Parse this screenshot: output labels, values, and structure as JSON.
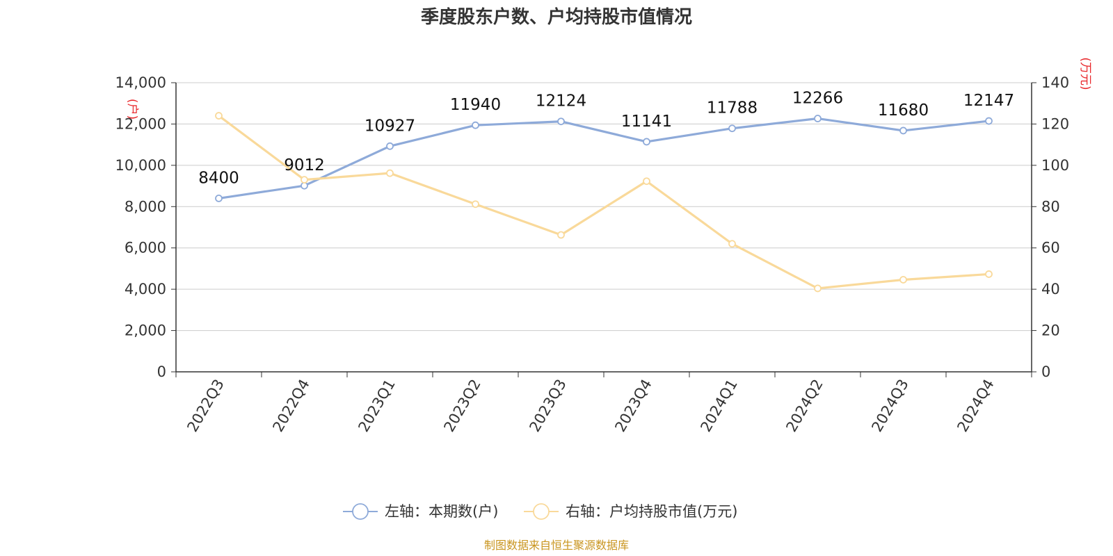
{
  "chart_data": {
    "type": "line",
    "title": "季度股东户数、户均持股市值情况",
    "categories": [
      "2022Q3",
      "2022Q4",
      "2023Q1",
      "2023Q2",
      "2023Q3",
      "2023Q4",
      "2024Q1",
      "2024Q2",
      "2024Q3",
      "2024Q4"
    ],
    "left_axis": {
      "unit": "(户)",
      "range": [
        0,
        14000
      ],
      "ticks": [
        "0",
        "2,000",
        "4,000",
        "6,000",
        "8,000",
        "10,000",
        "12,000",
        "14,000"
      ]
    },
    "right_axis": {
      "unit": "(万元)",
      "range": [
        0,
        140
      ],
      "ticks": [
        "0",
        "20",
        "40",
        "60",
        "80",
        "100",
        "120",
        "140"
      ]
    },
    "series": [
      {
        "name": "左轴：本期数(户)",
        "axis": "left",
        "color": "#8eaad9",
        "values": [
          8400,
          9012,
          10927,
          11940,
          12124,
          11141,
          11788,
          12266,
          11680,
          12147
        ],
        "labels": [
          "8400",
          "9012",
          "10927",
          "11940",
          "12124",
          "11141",
          "11788",
          "12266",
          "11680",
          "12147"
        ]
      },
      {
        "name": "右轴：户均持股市值(万元)",
        "axis": "right",
        "color": "#f9d99a",
        "values": [
          124.0,
          93.0,
          96.2,
          81.2,
          66.3,
          92.3,
          62.0,
          40.4,
          44.6,
          47.3
        ]
      }
    ],
    "grid": true,
    "legend_position": "bottom-center"
  },
  "source_text": "制图数据来自恒生聚源数据库"
}
